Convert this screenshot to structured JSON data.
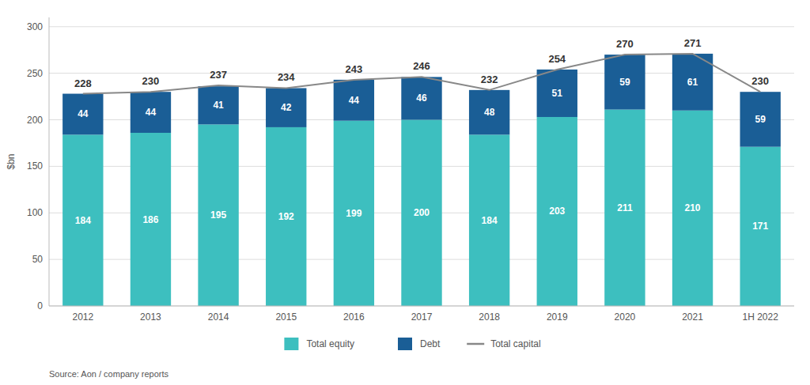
{
  "chart_data": {
    "type": "bar",
    "stacked": true,
    "categories": [
      "2012",
      "2013",
      "2014",
      "2015",
      "2016",
      "2017",
      "2018",
      "2019",
      "2020",
      "2021",
      "1H 2022"
    ],
    "series": [
      {
        "name": "Total equity",
        "type": "bar",
        "color": "#3DBFBF",
        "values": [
          184,
          186,
          195,
          192,
          199,
          200,
          184,
          203,
          211,
          210,
          171
        ]
      },
      {
        "name": "Debt",
        "type": "bar",
        "color": "#1A5E96",
        "values": [
          44,
          44,
          41,
          42,
          44,
          46,
          48,
          51,
          59,
          61,
          59
        ]
      },
      {
        "name": "Total capital",
        "type": "line",
        "color": "#888888",
        "values": [
          228,
          230,
          237,
          234,
          243,
          246,
          232,
          254,
          270,
          271,
          230
        ]
      }
    ],
    "y_label": "$bn",
    "ylim": [
      0,
      310
    ],
    "yticks": [
      0,
      50,
      100,
      150,
      200,
      250,
      300
    ],
    "grid": true,
    "legend": "bottom",
    "data_labels": true,
    "source": "Source: Aon / company reports"
  }
}
